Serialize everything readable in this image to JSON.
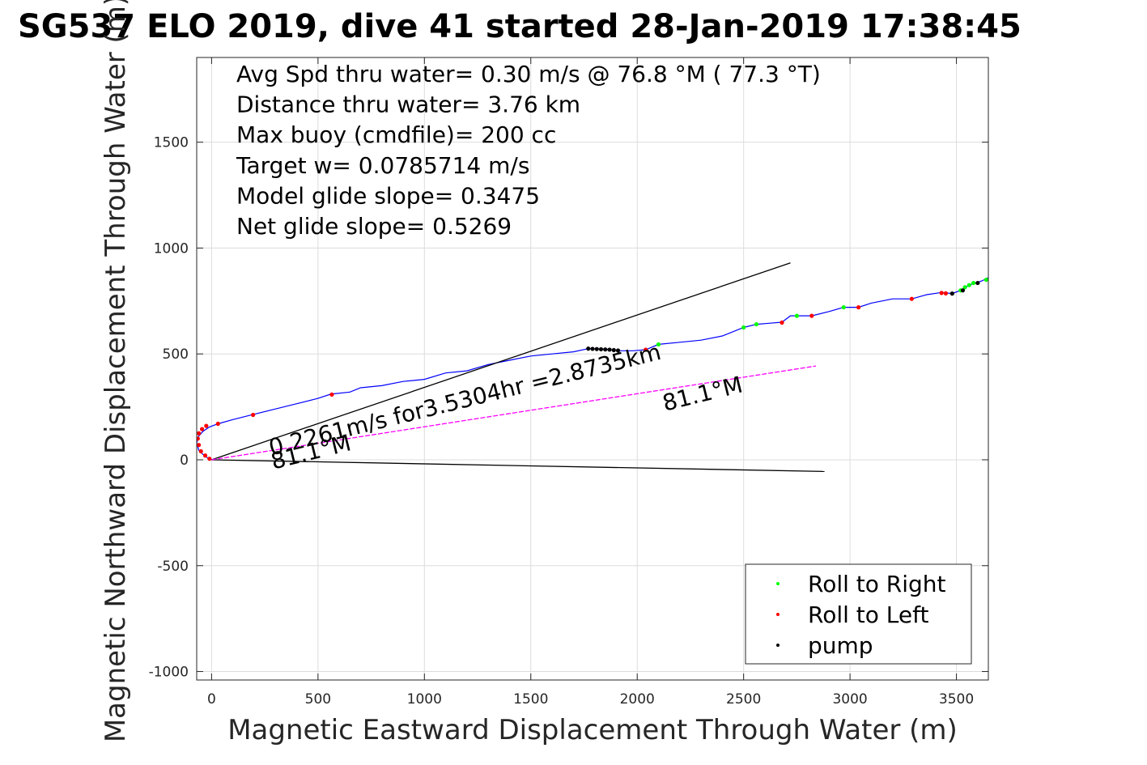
{
  "chart_data": {
    "type": "line",
    "title": "SG537 ELO 2019, dive 41 started 28-Jan-2019 17:38:45",
    "xlabel": "Magnetic Eastward Displacement Through Water (m)",
    "ylabel": "Magnetic Northward Displacement Through Water (m)",
    "xlim": [
      -70,
      3650
    ],
    "ylim": [
      -1040,
      1900
    ],
    "xticks": [
      0,
      500,
      1000,
      1500,
      2000,
      2500,
      3000,
      3500
    ],
    "yticks": [
      -1000,
      -500,
      0,
      500,
      1000,
      1500
    ],
    "grid": true,
    "legend_position": "bottom-right",
    "stats": [
      "Avg Spd thru water=  0.30 m/s @  76.8 °M ( 77.3 °T)",
      "Distance thru water=  3.76 km",
      "Max buoy (cmdfile)= 200 cc",
      "Target w= 0.0785714 m/s",
      "Model glide slope= 0.3475",
      "Net glide slope= 0.5269"
    ],
    "annotations": [
      {
        "text": "0.2261m/s for3.5304hr =2.8735km",
        "x": 280,
        "y": 20,
        "rotation": -13.9
      },
      {
        "text": "81.1°M",
        "x": 2130,
        "y": 230,
        "rotation": -13.9
      },
      {
        "text": "81.1°M",
        "x": 290,
        "y": -45,
        "rotation": -13.9
      }
    ],
    "series": [
      {
        "id": "track",
        "color": "#0000ff",
        "x": [
          0,
          -30,
          -60,
          -70,
          -62,
          -40,
          -10,
          30,
          100,
          200,
          300,
          400,
          500,
          560,
          650,
          700,
          800,
          900,
          1000,
          1100,
          1200,
          1300,
          1400,
          1500,
          1600,
          1700,
          1770,
          1850,
          1920,
          1980,
          2040,
          2100,
          2200,
          2300,
          2400,
          2500,
          2560,
          2620,
          2680,
          2720,
          2760,
          2820,
          2900,
          2970,
          3040,
          3100,
          3200,
          3290,
          3360,
          3430,
          3480,
          3520,
          3560,
          3590,
          3620,
          3650
        ],
        "y": [
          0,
          15,
          45,
          80,
          110,
          135,
          155,
          170,
          190,
          215,
          240,
          265,
          290,
          310,
          320,
          340,
          350,
          370,
          380,
          410,
          420,
          450,
          470,
          490,
          500,
          510,
          525,
          523,
          515,
          515,
          520,
          545,
          555,
          565,
          585,
          625,
          640,
          645,
          650,
          680,
          680,
          680,
          700,
          720,
          720,
          740,
          760,
          760,
          780,
          790,
          785,
          800,
          825,
          835,
          845,
          860
        ]
      },
      {
        "id": "glide_line_upper",
        "color": "#000000",
        "x": [
          0,
          2720
        ],
        "y": [
          0,
          930
        ]
      },
      {
        "id": "glide_line_lower",
        "color": "#000000",
        "x": [
          0,
          2880
        ],
        "y": [
          0,
          -55
        ]
      },
      {
        "id": "current_vector",
        "color": "#ff00ff",
        "x": [
          0,
          2840
        ],
        "y": [
          0,
          443
        ]
      }
    ],
    "markers": [
      {
        "name": "Roll to Right",
        "color": "#00ff00",
        "x": [
          2100,
          2500,
          2560,
          2750,
          2970,
          3520,
          3540,
          3560,
          3580,
          3640
        ],
        "y": [
          545,
          625,
          640,
          680,
          720,
          800,
          815,
          825,
          835,
          850
        ]
      },
      {
        "name": "Roll to Left",
        "color": "#ff0000",
        "x": [
          -10,
          -30,
          -50,
          -60,
          -65,
          -60,
          -45,
          -25,
          30,
          195,
          565,
          2040,
          2680,
          2820,
          3040,
          3290,
          3430,
          3450
        ],
        "y": [
          5,
          20,
          40,
          70,
          100,
          125,
          145,
          160,
          170,
          212,
          308,
          520,
          648,
          680,
          720,
          760,
          788,
          786
        ]
      },
      {
        "name": "pump",
        "color": "#000000",
        "x": [
          1770,
          1790,
          1810,
          1830,
          1850,
          1870,
          1890,
          1910,
          3480,
          3530,
          3600
        ],
        "y": [
          525,
          524,
          523,
          522,
          521,
          520,
          518,
          516,
          785,
          800,
          835
        ]
      }
    ]
  },
  "legend": [
    {
      "label": "Roll to Right",
      "color": "#00ff00"
    },
    {
      "label": "Roll to Left",
      "color": "#ff0000"
    },
    {
      "label": "pump",
      "color": "#000000"
    }
  ]
}
